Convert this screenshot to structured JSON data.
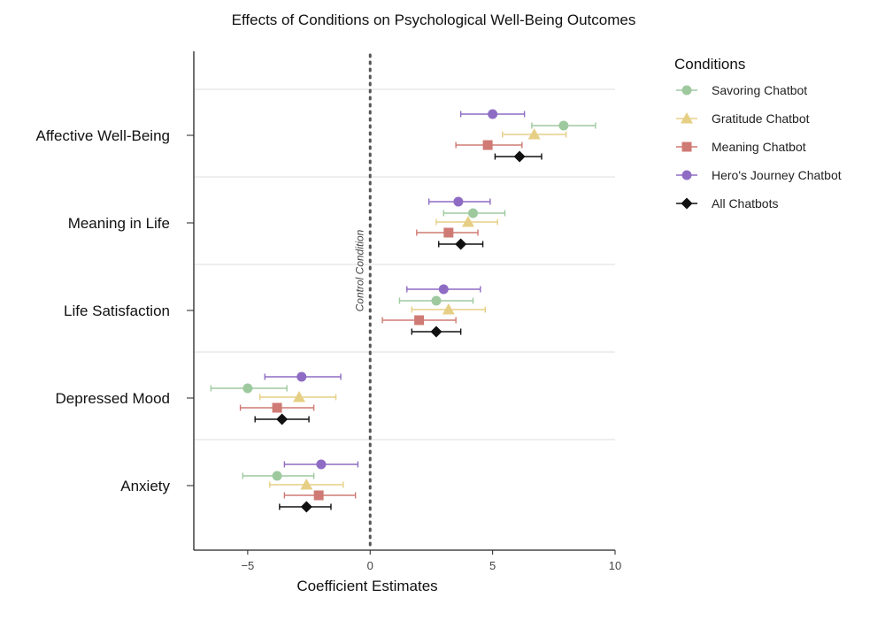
{
  "chart_data": {
    "type": "forest_plot",
    "title": "Effects of Conditions on Psychological Well-Being Outcomes",
    "xlabel": "Coefficient Estimates",
    "xlim": [
      -7.2,
      10
    ],
    "xticks": [
      -5,
      0,
      5,
      10
    ],
    "reference_line": {
      "x": 0,
      "label": "Control Condition"
    },
    "categories": [
      "Affective Well-Being",
      "Meaning in Life",
      "Life Satisfaction",
      "Depressed Mood",
      "Anxiety"
    ],
    "legend_title": "Conditions",
    "legend_position": "top-right",
    "series": [
      {
        "name": "Savoring Chatbot",
        "color": "#9ec99f",
        "marker": "circle",
        "points": [
          {
            "estimate": 7.9,
            "lower": 6.6,
            "upper": 9.2
          },
          {
            "estimate": 4.2,
            "lower": 3.0,
            "upper": 5.5
          },
          {
            "estimate": 2.7,
            "lower": 1.2,
            "upper": 4.2
          },
          {
            "estimate": -5.0,
            "lower": -6.5,
            "upper": -3.4
          },
          {
            "estimate": -3.8,
            "lower": -5.2,
            "upper": -2.3
          }
        ]
      },
      {
        "name": "Gratitude Chatbot",
        "color": "#e6cf85",
        "marker": "triangle",
        "points": [
          {
            "estimate": 6.7,
            "lower": 5.4,
            "upper": 8.0
          },
          {
            "estimate": 4.0,
            "lower": 2.7,
            "upper": 5.2
          },
          {
            "estimate": 3.2,
            "lower": 1.7,
            "upper": 4.7
          },
          {
            "estimate": -2.9,
            "lower": -4.5,
            "upper": -1.4
          },
          {
            "estimate": -2.6,
            "lower": -4.1,
            "upper": -1.1
          }
        ]
      },
      {
        "name": "Meaning Chatbot",
        "color": "#cf7a74",
        "marker": "square",
        "points": [
          {
            "estimate": 4.8,
            "lower": 3.5,
            "upper": 6.2
          },
          {
            "estimate": 3.2,
            "lower": 1.9,
            "upper": 4.4
          },
          {
            "estimate": 2.0,
            "lower": 0.5,
            "upper": 3.5
          },
          {
            "estimate": -3.8,
            "lower": -5.3,
            "upper": -2.3
          },
          {
            "estimate": -2.1,
            "lower": -3.5,
            "upper": -0.6
          }
        ]
      },
      {
        "name": "Hero's Journey Chatbot",
        "color": "#8e6cc4",
        "marker": "circle",
        "points": [
          {
            "estimate": 5.0,
            "lower": 3.7,
            "upper": 6.3
          },
          {
            "estimate": 3.6,
            "lower": 2.4,
            "upper": 4.9
          },
          {
            "estimate": 3.0,
            "lower": 1.5,
            "upper": 4.5
          },
          {
            "estimate": -2.8,
            "lower": -4.3,
            "upper": -1.2
          },
          {
            "estimate": -2.0,
            "lower": -3.5,
            "upper": -0.5
          }
        ]
      },
      {
        "name": "All Chatbots",
        "color": "#111111",
        "marker": "diamond",
        "points": [
          {
            "estimate": 6.1,
            "lower": 5.1,
            "upper": 7.0
          },
          {
            "estimate": 3.7,
            "lower": 2.8,
            "upper": 4.6
          },
          {
            "estimate": 2.7,
            "lower": 1.7,
            "upper": 3.7
          },
          {
            "estimate": -3.6,
            "lower": -4.7,
            "upper": -2.5
          },
          {
            "estimate": -2.6,
            "lower": -3.7,
            "upper": -1.6
          }
        ]
      }
    ]
  }
}
